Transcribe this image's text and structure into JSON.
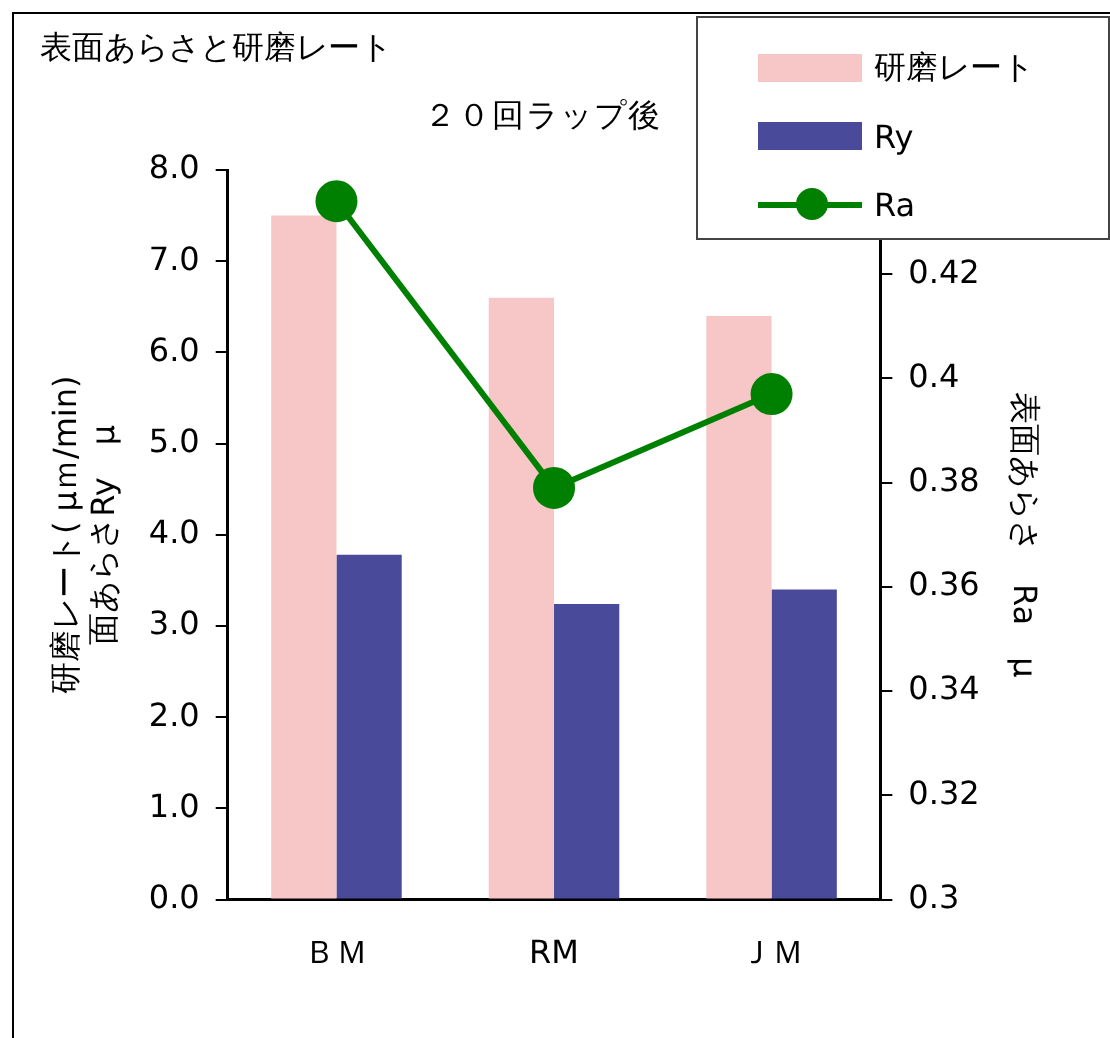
{
  "chart_data": {
    "type": "bar",
    "title": "表面あらさと研磨レート",
    "subtitle": "２０回ラップ後",
    "ylabel": "研磨レート( μｍ/min)\n面あらさRy　μ",
    "y2label": "表面あらさ　Ra　μ",
    "categories": [
      "ＢＭ",
      "RM",
      "ＪＭ"
    ],
    "series": [
      {
        "name": "研磨レート",
        "color": "#f7c6c6",
        "values": [
          7.5,
          6.6,
          6.4
        ]
      },
      {
        "name": "Ry",
        "color": "#4a4a9a",
        "values": [
          3.78,
          3.24,
          3.4
        ]
      },
      {
        "name": "Ra",
        "type": "line",
        "axis": "y2",
        "color": "#008000",
        "values": [
          0.434,
          0.379,
          0.397
        ]
      }
    ],
    "ylim": [
      0,
      8
    ],
    "yticks": [
      {
        "value": 0,
        "label": "0.0"
      },
      {
        "value": 1,
        "label": "1.0"
      },
      {
        "value": 2,
        "label": "2.0"
      },
      {
        "value": 3,
        "label": "3.0"
      },
      {
        "value": 4,
        "label": "4.0"
      },
      {
        "value": 5,
        "label": "5.0"
      },
      {
        "value": 6,
        "label": "6.0"
      },
      {
        "value": 7,
        "label": "7.0"
      },
      {
        "value": 8,
        "label": "8.0"
      }
    ],
    "y2lim": [
      0.3,
      0.44
    ],
    "y2ticks": [
      0.3,
      0.32,
      0.34,
      0.36,
      0.38,
      0.4,
      0.42
    ],
    "grid": false,
    "legend": "top right",
    "marker": "circle",
    "line_style": "solid"
  }
}
